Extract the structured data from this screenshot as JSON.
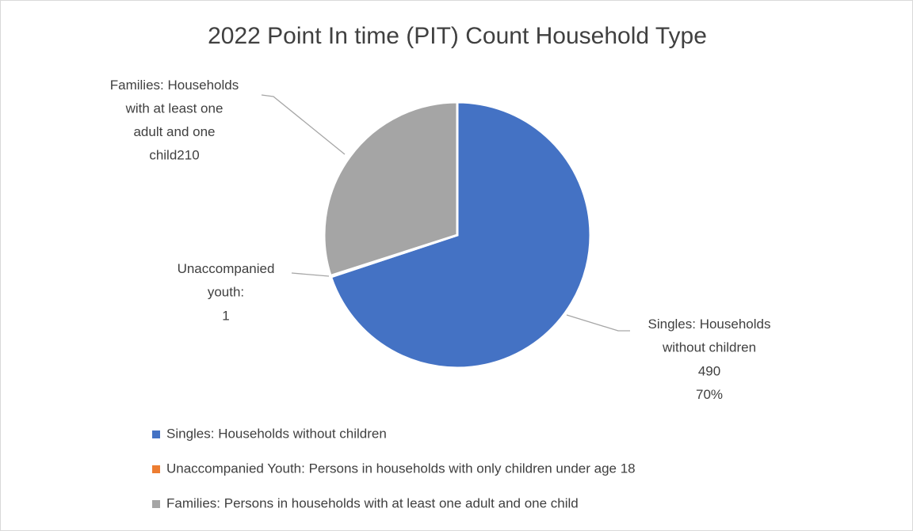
{
  "chart_data": {
    "type": "pie",
    "title": "2022 Point In time (PIT) Count Household Type",
    "categories": [
      "Singles: Households without children",
      "Unaccompanied Youth: Persons in households with only children under age 18",
      "Families: Persons in households with at least one adult and one child"
    ],
    "values": [
      490,
      1,
      210
    ],
    "colors": [
      "#4472c4",
      "#ed7d31",
      "#a5a5a5"
    ],
    "label_names": [
      [
        "Singles: Households",
        "without children"
      ],
      [
        "Unaccompanied",
        "youth:"
      ],
      [
        "Families: Households",
        "with at least one",
        "adult and one",
        "child"
      ]
    ],
    "label_percents": [
      {
        "value": 70,
        "label": "70%"
      },
      null,
      null
    ],
    "legend": "bottom"
  }
}
